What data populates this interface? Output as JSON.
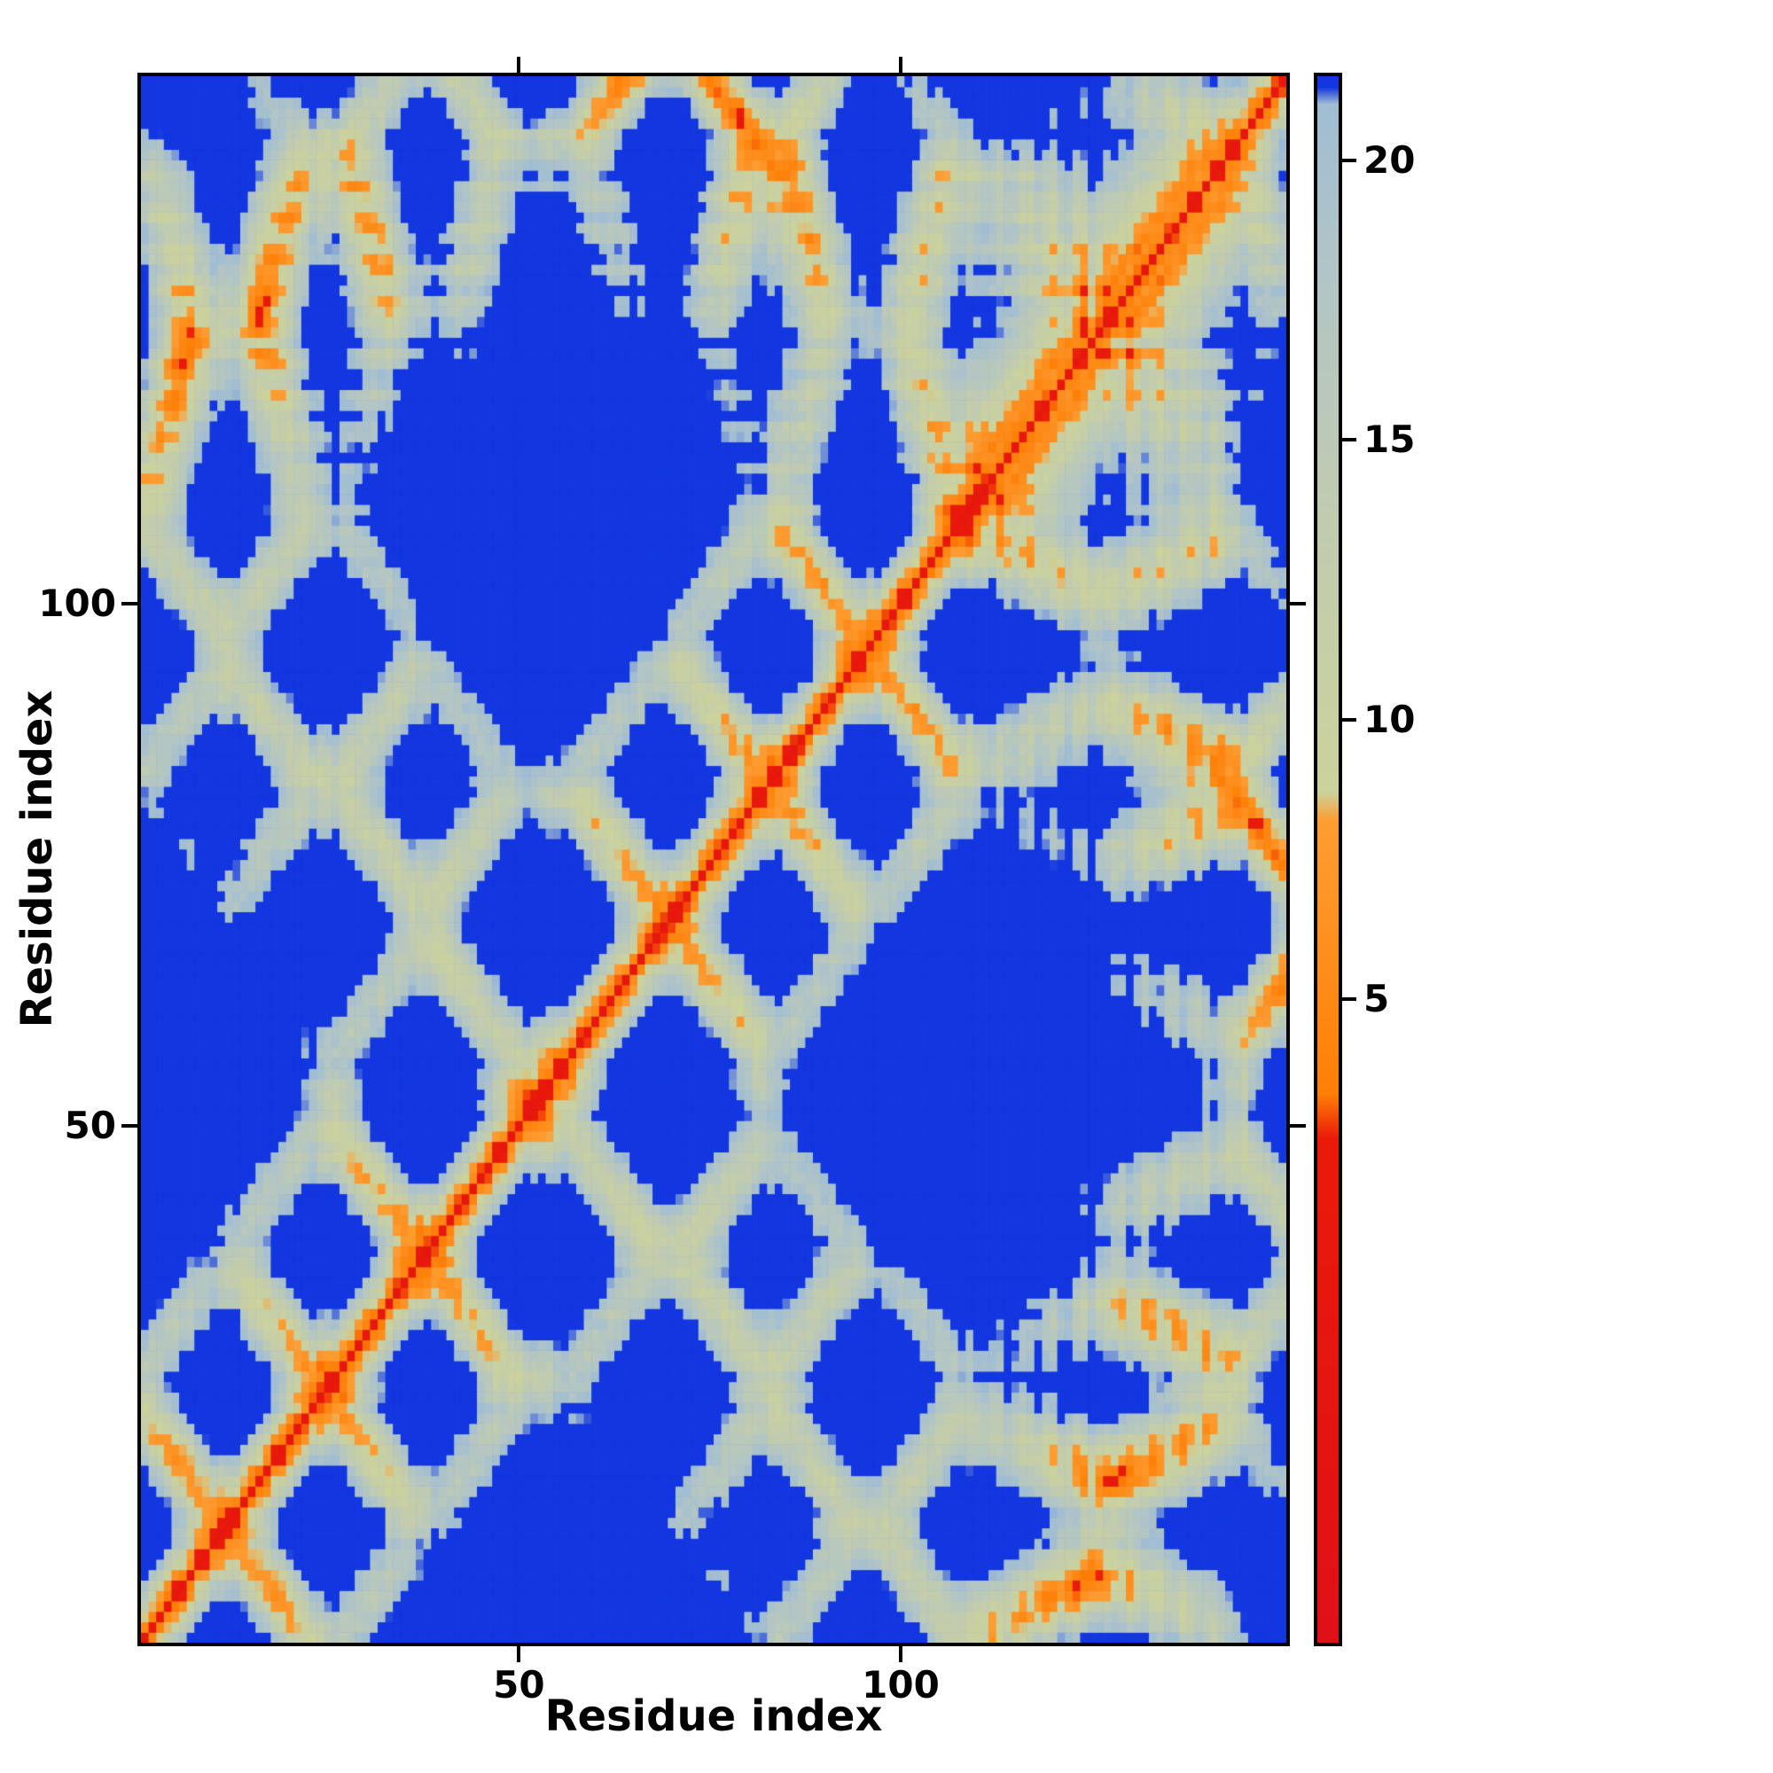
{
  "figure": {
    "background": "#ffffff",
    "frame_color": "#000000",
    "text_color": "#000000"
  },
  "chart_data": {
    "type": "heatmap",
    "title": "",
    "xlabel": "Residue index",
    "ylabel": "Residue index",
    "x_ticks": [
      50,
      100
    ],
    "y_ticks": [
      50,
      100
    ],
    "axis_range": [
      1,
      150
    ],
    "grid": false,
    "legend": "none",
    "colorbar": {
      "position": "right",
      "ticks": [
        5,
        10,
        15,
        20
      ],
      "vmin": -6.5,
      "vmax": 21.5
    },
    "colormap": {
      "stops": [
        [
          -6.5,
          "#e01018"
        ],
        [
          2.5,
          "#ea1a0a"
        ],
        [
          3.3,
          "#fe7f06"
        ],
        [
          8.2,
          "#fe9d33"
        ],
        [
          8.7,
          "#ccd29c"
        ],
        [
          13.0,
          "#c2ccad"
        ],
        [
          18.0,
          "#b2c5c6"
        ],
        [
          21.0,
          "#a0bdd3"
        ],
        [
          21.3,
          "#1236df"
        ],
        [
          21.5,
          "#1236df"
        ]
      ]
    },
    "matrix": {
      "description": "symmetric residue-residue distance map (red diagonal = zero distance, orange = close contacts, pale green-grey = mid-range, blue = beyond cap); values procedurally reconstructed approximation of the screenshot",
      "n": 150,
      "cap": 21.5,
      "seed": 7,
      "jitter": 1.1,
      "step": 3.8,
      "helix_rise": 1.5,
      "helix_radius": 2.3,
      "helix_twist": 1.745,
      "cell_noise": 0.9,
      "segments": [
        {
          "type": "strand",
          "len": 10,
          "dir": [
            1,
            0,
            0
          ]
        },
        {
          "type": "loop",
          "len": 3,
          "dir": [
            0.15,
            1,
            0
          ],
          "stepmul": 0.55
        },
        {
          "type": "strand",
          "len": 10,
          "dir": [
            -1,
            0.05,
            0
          ]
        },
        {
          "type": "loop",
          "len": 3,
          "dir": [
            -0.1,
            1,
            0
          ],
          "stepmul": 0.55
        },
        {
          "type": "strand",
          "len": 10,
          "dir": [
            1,
            0.05,
            0
          ]
        },
        {
          "type": "loop",
          "len": 3,
          "dir": [
            0.2,
            1,
            0.1
          ],
          "stepmul": 0.55
        },
        {
          "type": "strand",
          "len": 12,
          "dir": [
            -1,
            0.05,
            0
          ]
        },
        {
          "type": "loop",
          "len": 5,
          "dir": [
            0.3,
            0.25,
            1
          ],
          "stepmul": 0.6
        },
        {
          "type": "strand",
          "len": 12,
          "dir": [
            1,
            -0.05,
            0
          ]
        },
        {
          "type": "loop",
          "len": 3,
          "dir": [
            0.1,
            -1,
            0.1
          ],
          "stepmul": 0.55
        },
        {
          "type": "strand",
          "len": 10,
          "dir": [
            -1,
            -0.05,
            0
          ]
        },
        {
          "type": "loop",
          "len": 3,
          "dir": [
            -0.15,
            -1,
            0
          ],
          "stepmul": 0.55
        },
        {
          "type": "strand",
          "len": 10,
          "dir": [
            1,
            -0.05,
            0
          ]
        },
        {
          "type": "loop",
          "len": 3,
          "dir": [
            0.15,
            -1,
            0.1
          ],
          "stepmul": 0.55
        },
        {
          "type": "strand",
          "len": 10,
          "dir": [
            -1,
            0,
            0
          ]
        },
        {
          "type": "loop",
          "len": 4,
          "dir": [
            0.2,
            -0.8,
            -0.4
          ],
          "stepmul": 0.6
        },
        {
          "type": "helix",
          "len": 14,
          "dir": [
            1,
            0.3,
            -0.35
          ]
        },
        {
          "type": "loop",
          "len": 3,
          "dir": [
            0.2,
            1,
            0
          ],
          "stepmul": 0.6
        },
        {
          "type": "helix",
          "len": 14,
          "dir": [
            -1,
            0.25,
            0.3
          ]
        },
        {
          "type": "loop",
          "len": 3,
          "dir": [
            0,
            1,
            0.3
          ],
          "stepmul": 0.6
        },
        {
          "type": "strand",
          "len": 5,
          "dir": [
            1,
            0.2,
            0.2
          ]
        }
      ]
    }
  }
}
